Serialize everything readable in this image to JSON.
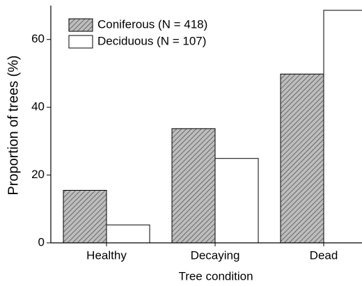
{
  "chart_data": {
    "type": "bar",
    "x_label": "Tree condition",
    "y_label": "Proportion of trees (%)",
    "categories": [
      "Healthy",
      "Decaying",
      "Dead"
    ],
    "series": [
      {
        "name": "Coniferous (N = 418)",
        "color": "#bdbdbd",
        "hatch": true,
        "values": [
          15.5,
          33.7,
          49.8
        ]
      },
      {
        "name": "Deciduous (N = 107)",
        "color": "#ffffff",
        "hatch": false,
        "values": [
          5.3,
          24.9,
          68.6
        ]
      }
    ],
    "ylim": [
      0,
      70
    ],
    "yticks": [
      0,
      20,
      40,
      60
    ],
    "legend": "upper left"
  }
}
